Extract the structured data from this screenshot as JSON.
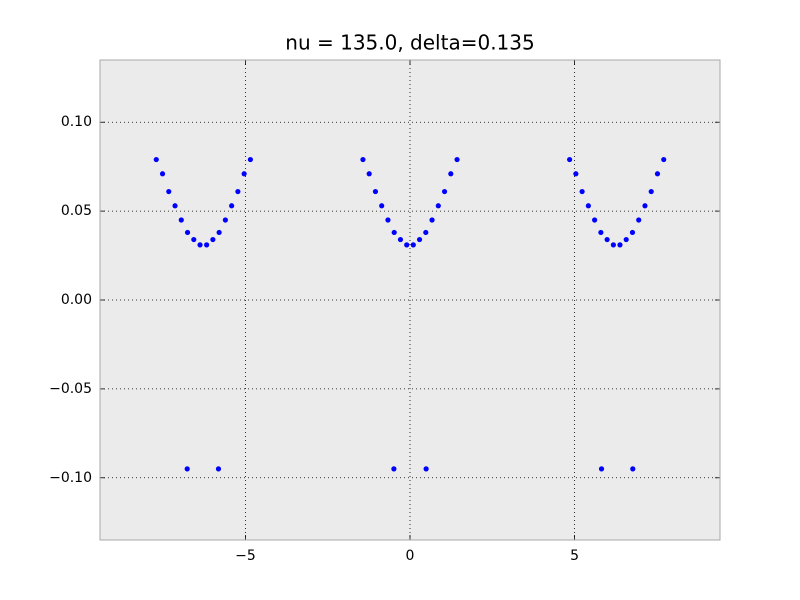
{
  "chart_data": {
    "type": "scatter",
    "title": "nu = 135.0, delta=0.135",
    "series": [
      {
        "color": "#0000ff",
        "x": [
          -7.71,
          -7.52,
          -7.33,
          -7.14,
          -6.95,
          -6.76,
          -6.57,
          -6.38,
          -6.18,
          -5.99,
          -5.8,
          -5.61,
          -5.42,
          -5.23,
          -5.04,
          -4.85,
          -1.43,
          -1.24,
          -1.05,
          -0.86,
          -0.67,
          -0.48,
          -0.29,
          -0.1,
          0.1,
          0.29,
          0.48,
          0.67,
          0.86,
          1.05,
          1.24,
          1.43,
          4.85,
          5.04,
          5.23,
          5.42,
          5.61,
          5.8,
          5.99,
          6.18,
          6.38,
          6.57,
          6.76,
          6.95,
          7.14,
          7.33,
          7.52,
          7.71,
          -6.77,
          -5.82,
          -0.49,
          0.49,
          5.82,
          6.77
        ],
        "values": [
          0.079,
          0.071,
          0.061,
          0.053,
          0.045,
          0.038,
          0.034,
          0.031,
          0.031,
          0.034,
          0.038,
          0.045,
          0.053,
          0.061,
          0.071,
          0.079,
          0.079,
          0.071,
          0.061,
          0.053,
          0.045,
          0.038,
          0.034,
          0.031,
          0.031,
          0.034,
          0.038,
          0.045,
          0.053,
          0.061,
          0.071,
          0.079,
          0.079,
          0.071,
          0.061,
          0.053,
          0.045,
          0.038,
          0.034,
          0.031,
          0.031,
          0.034,
          0.038,
          0.045,
          0.053,
          0.061,
          0.071,
          0.079,
          -0.095,
          -0.095,
          -0.095,
          -0.095,
          -0.095,
          -0.095
        ]
      }
    ],
    "xlim": [
      -9.42,
      9.42
    ],
    "ylim": [
      -0.135,
      0.135
    ],
    "xticks": [
      {
        "value": -5,
        "label": "−5"
      },
      0,
      5
    ],
    "yticks": [
      {
        "value": -0.1,
        "label": "−0.10"
      },
      {
        "value": -0.05,
        "label": "−0.05"
      },
      {
        "value": 0,
        "label": "0.00"
      },
      {
        "value": 0.05,
        "label": "0.05"
      },
      {
        "value": 0.1,
        "label": "0.10"
      }
    ],
    "grid": true
  }
}
